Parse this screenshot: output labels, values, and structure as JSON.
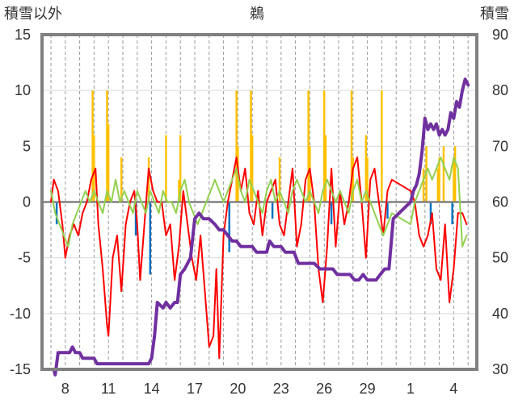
{
  "chart_data": {
    "type": "line",
    "title": "鵜",
    "left_axis_title": "積雪以外",
    "right_axis_title": "積雪",
    "ylim": [
      -15,
      15
    ],
    "y2lim": [
      30,
      90
    ],
    "y_ticks": [
      "15",
      "10",
      "5",
      "0",
      "-5",
      "-10",
      "-15"
    ],
    "y2_ticks": [
      "90",
      "80",
      "70",
      "60",
      "50",
      "40",
      "30"
    ],
    "x_ticks": [
      "8",
      "11",
      "14",
      "17",
      "20",
      "23",
      "26",
      "29",
      "1",
      "4"
    ],
    "grid": true,
    "colors": {
      "bars": "#ffc000",
      "bars_negative": "#0070c0",
      "red": "#ff0000",
      "green": "#92d050",
      "purple": "#7030a0",
      "zero_line": "#808080",
      "frame": "#808080"
    },
    "series": [
      {
        "axis": "left",
        "kind": "bar",
        "x": [
          9.9,
          10.0,
          10.9,
          11.0,
          11.9,
          13.8,
          15.0,
          15.9,
          16.0,
          19.9,
          20.0,
          20.9,
          21.0,
          22.9,
          24.9,
          25.0,
          26.0,
          26.1,
          27.9,
          28.0,
          28.9,
          29.0,
          30.0,
          1.9,
          2.1,
          2.9,
          3.0,
          3.3,
          4.0,
          4.1
        ],
        "values": [
          10,
          6,
          10,
          7,
          4,
          4,
          6,
          2,
          6,
          10,
          5,
          10,
          6,
          4,
          10,
          5,
          10,
          6,
          10,
          4,
          6,
          4,
          10,
          3,
          5,
          3,
          4,
          5,
          4,
          5
        ]
      },
      {
        "axis": "left",
        "kind": "bar",
        "x": [
          7.4,
          12.9,
          13.9,
          19.4,
          22.4,
          26.5,
          30.4,
          2.4,
          3.9
        ],
        "values": [
          -2,
          -3,
          -6.5,
          -4.5,
          -1.5,
          -2,
          -1.5,
          -2,
          -2
        ]
      },
      {
        "axis": "left",
        "kind": "line",
        "x": [
          7.0,
          7.2,
          7.5,
          7.8,
          8.0,
          8.3,
          8.6,
          8.9,
          9.2,
          9.5,
          9.8,
          10.1,
          10.3,
          10.6,
          10.9,
          11.0,
          11.3,
          11.6,
          11.9,
          12.2,
          12.5,
          12.8,
          13.0,
          13.2,
          13.5,
          13.8,
          14.1,
          14.4,
          14.7,
          15.0,
          15.3,
          15.6,
          15.9,
          16.2,
          16.5,
          16.8,
          17.1,
          17.4,
          17.7,
          18.0,
          18.3,
          18.5,
          18.7,
          19.0,
          19.3,
          19.6,
          19.9,
          20.2,
          20.5,
          20.8,
          21.1,
          21.4,
          21.7,
          22.0,
          22.3,
          22.6,
          22.9,
          23.2,
          23.5,
          23.8,
          24.1,
          24.4,
          24.7,
          25.0,
          25.3,
          25.6,
          25.9,
          26.2,
          26.5,
          26.8,
          27.1,
          27.4,
          27.7,
          28.0,
          28.3,
          28.6,
          28.9,
          29.2,
          29.5,
          29.8,
          30.1,
          30.4,
          30.7,
          1.0,
          1.3,
          1.6,
          1.9,
          2.2,
          2.5,
          2.8,
          3.1,
          3.4,
          3.7,
          4.0,
          4.3,
          4.6,
          4.9
        ],
        "values": [
          0,
          2,
          1,
          -2,
          -5,
          -3,
          -2,
          -3,
          -1,
          0,
          2,
          3,
          -2,
          -6,
          -11,
          -12,
          -5,
          -3,
          -8,
          -2,
          0,
          1,
          -2,
          -7,
          -2,
          3,
          1,
          0,
          0,
          -3,
          -2,
          -7,
          -4,
          1,
          -2,
          -5,
          -7,
          -3,
          -8,
          -13,
          -12,
          -6,
          -14,
          -3,
          0,
          2,
          4,
          1,
          3,
          -1,
          -2,
          1,
          -3,
          0,
          1,
          2,
          -2,
          -3,
          0,
          3,
          -4,
          -2,
          2,
          3,
          0,
          -6,
          -9,
          -4,
          3,
          -4,
          1,
          -2,
          0,
          3,
          4,
          0,
          -5,
          2,
          3,
          0,
          -3,
          1,
          2,
          1,
          0,
          -3,
          -4,
          -3,
          -1,
          -6,
          -7,
          -2,
          -9,
          -6,
          -1,
          -1,
          -2
        ]
      },
      {
        "axis": "left",
        "kind": "line",
        "x": [
          7.0,
          7.3,
          7.6,
          7.9,
          8.2,
          8.5,
          8.8,
          9.1,
          9.4,
          9.7,
          10.0,
          10.3,
          10.6,
          10.9,
          11.2,
          11.5,
          11.8,
          12.1,
          12.4,
          12.7,
          13.0,
          13.3,
          13.6,
          13.9,
          14.2,
          14.5,
          14.8,
          15.1,
          15.4,
          15.7,
          16.0,
          16.3,
          16.6,
          16.9,
          17.2,
          17.5,
          17.8,
          18.1,
          18.4,
          18.7,
          19.0,
          19.3,
          19.6,
          19.9,
          20.2,
          20.5,
          20.8,
          21.1,
          21.4,
          21.7,
          22.0,
          22.3,
          22.6,
          22.9,
          23.2,
          23.5,
          23.8,
          24.1,
          24.4,
          24.7,
          25.0,
          25.3,
          25.6,
          25.9,
          26.2,
          26.5,
          26.8,
          27.1,
          27.4,
          27.7,
          28.0,
          28.3,
          28.6,
          28.9,
          29.2,
          29.5,
          29.8,
          30.1,
          30.4,
          30.7,
          1.0,
          1.3,
          1.6,
          1.9,
          2.2,
          2.5,
          2.8,
          3.1,
          3.4,
          3.7,
          4.0,
          4.3,
          4.6,
          4.9
        ],
        "values": [
          1,
          -1,
          -2,
          -3,
          -4,
          -2,
          -1,
          0,
          1,
          0,
          1,
          0,
          -1,
          1,
          0,
          2,
          0,
          1,
          0,
          -1,
          1,
          0,
          -1,
          1,
          0,
          -1,
          1,
          0,
          0,
          -1,
          1,
          2,
          0,
          -1,
          -2,
          -1,
          0,
          1,
          2,
          1,
          0,
          1,
          2,
          3,
          1,
          0,
          2,
          1,
          0,
          -1,
          1,
          2,
          0,
          1,
          0,
          -1,
          1,
          2,
          1,
          0,
          1,
          0,
          -1,
          1,
          2,
          1,
          0,
          1,
          0,
          -1,
          1,
          2,
          0,
          1,
          0,
          -1,
          -2,
          -3,
          -2,
          -1,
          -2,
          0,
          1,
          2,
          3,
          2,
          3,
          4,
          3,
          2,
          4,
          3,
          -4,
          -3
        ]
      },
      {
        "axis": "right",
        "kind": "line",
        "x": [
          7.0,
          7.2,
          7.3,
          7.5,
          8.3,
          8.5,
          8.7,
          9.0,
          9.2,
          10.0,
          10.2,
          11.0,
          12.0,
          13.0,
          13.8,
          14.0,
          14.2,
          14.4,
          14.8,
          15.0,
          15.3,
          15.6,
          15.8,
          16.0,
          16.3,
          16.7,
          17.0,
          17.3,
          17.6,
          18.0,
          18.4,
          18.7,
          19.0,
          19.3,
          19.6,
          19.9,
          20.2,
          20.5,
          20.8,
          21.0,
          21.3,
          21.6,
          22.0,
          22.2,
          22.5,
          22.7,
          23.0,
          23.3,
          23.6,
          23.9,
          24.2,
          24.6,
          25.0,
          25.3,
          25.7,
          26.0,
          26.3,
          26.6,
          26.9,
          27.2,
          27.5,
          27.8,
          28.1,
          28.4,
          28.7,
          29.0,
          29.3,
          29.6,
          29.9,
          30.2,
          30.5,
          30.8,
          1.0,
          1.2,
          1.4,
          1.6,
          1.8,
          2.0,
          2.2,
          2.4,
          2.6,
          2.8,
          3.0,
          3.2,
          3.4,
          3.6,
          3.8,
          4.0,
          4.2,
          4.4,
          4.6,
          4.8,
          5.0
        ],
        "values": [
          30,
          30,
          29,
          33,
          33,
          34,
          33,
          33,
          32,
          32,
          31,
          31,
          31,
          31,
          31,
          32,
          36,
          42,
          41,
          42,
          41,
          42,
          42,
          47,
          48,
          50,
          57,
          58,
          57,
          57,
          56,
          55,
          55,
          54,
          53,
          53,
          52,
          52,
          52,
          52,
          51,
          51,
          51,
          53,
          52,
          52,
          52,
          51,
          51,
          51,
          49,
          49,
          49,
          49,
          48,
          48,
          48,
          48,
          47,
          47,
          47,
          47,
          46,
          46,
          47,
          46,
          46,
          46,
          47,
          48,
          48,
          57,
          60,
          62,
          63,
          65,
          69,
          75,
          73,
          74,
          73,
          74,
          72,
          73,
          72,
          73,
          76,
          75,
          78,
          77,
          80,
          82,
          81
        ]
      }
    ]
  }
}
